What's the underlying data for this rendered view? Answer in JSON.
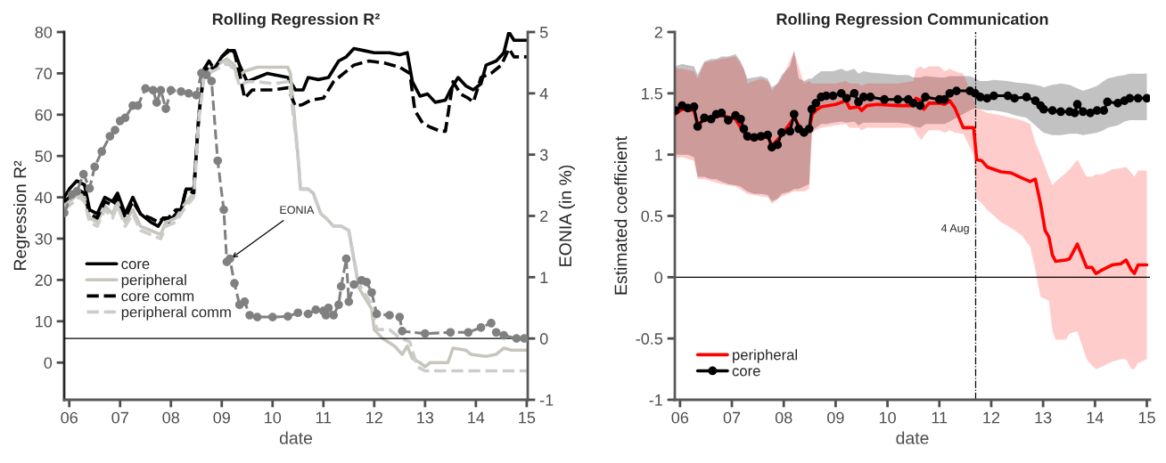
{
  "chart_data": [
    {
      "type": "line",
      "title": "Rolling Regression R²",
      "xlabel": "date",
      "ylabel": "Regression R²",
      "y2label": "EONIA (in %)",
      "xlim": [
        2005.9,
        2015.02
      ],
      "xticks": [
        {
          "value": 2006,
          "label": "06"
        },
        {
          "value": 2007,
          "label": "07"
        },
        {
          "value": 2008,
          "label": "08"
        },
        {
          "value": 2009,
          "label": "09"
        },
        {
          "value": 2010,
          "label": "10"
        },
        {
          "value": 2011,
          "label": "11"
        },
        {
          "value": 2012,
          "label": "12"
        },
        {
          "value": 2013,
          "label": "13"
        },
        {
          "value": 2014,
          "label": "14"
        },
        {
          "value": 2015,
          "label": "15"
        }
      ],
      "ylim": [
        -9,
        80
      ],
      "yticks": [
        0,
        10,
        20,
        30,
        40,
        50,
        60,
        70,
        80
      ],
      "y2lim": [
        -1,
        5
      ],
      "y2ticks": [
        -1,
        0,
        1,
        2,
        3,
        4,
        5
      ],
      "legend": "bottom left",
      "grid": false,
      "ref_lines": [
        {
          "axis": "y2",
          "value": 0,
          "color": "#000000",
          "line_style": "solid"
        }
      ],
      "annotations": [
        {
          "text": "EONIA",
          "x": 2009.16,
          "y": 25
        }
      ],
      "series": [
        {
          "name": "core",
          "color": "#000000",
          "line_style": "solid",
          "x": [
            2005.9,
            2006.0,
            2006.15,
            2006.3,
            2006.4,
            2006.55,
            2006.7,
            2006.85,
            2006.95,
            2007.1,
            2007.25,
            2007.4,
            2007.6,
            2007.75,
            2007.85,
            2007.95,
            2008.1,
            2008.2,
            2008.3,
            2008.45,
            2008.55,
            2008.65,
            2008.75,
            2008.85,
            2009.0,
            2009.15,
            2009.25,
            2009.35,
            2009.5,
            2009.7,
            2009.9,
            2010.1,
            2010.3,
            2010.45,
            2010.6,
            2010.7,
            2010.9,
            2011.1,
            2011.2,
            2011.3,
            2011.45,
            2011.6,
            2011.8,
            2012.0,
            2012.3,
            2012.5,
            2012.65,
            2012.75,
            2012.9,
            2013.05,
            2013.2,
            2013.4,
            2013.5,
            2013.65,
            2013.8,
            2013.95,
            2014.1,
            2014.2,
            2014.4,
            2014.55,
            2014.65,
            2014.75,
            2015.0
          ],
          "values": [
            40,
            42,
            44,
            43,
            37,
            36,
            40,
            39,
            41,
            36,
            40,
            36,
            34,
            33,
            35,
            34,
            36,
            37,
            42,
            42,
            60,
            71,
            73,
            71,
            74,
            75.5,
            75.5,
            72,
            68,
            69,
            70,
            69.5,
            69,
            66,
            66,
            69,
            68.5,
            69,
            71,
            73,
            74,
            76,
            75.5,
            75,
            75,
            74.5,
            75,
            68,
            64.5,
            65,
            63,
            63.5,
            66,
            69,
            67,
            66,
            67.5,
            72,
            73,
            75,
            80,
            78,
            78
          ]
        },
        {
          "name": "peripheral",
          "color": "#c8c5bd",
          "line_style": "solid",
          "x": [
            2005.9,
            2006.0,
            2006.2,
            2006.3,
            2006.4,
            2006.55,
            2006.7,
            2006.85,
            2006.95,
            2007.1,
            2007.25,
            2007.4,
            2007.6,
            2007.8,
            2007.9,
            2008.1,
            2008.25,
            2008.45,
            2008.55,
            2008.65,
            2008.75,
            2008.9,
            2009.1,
            2009.25,
            2009.3,
            2009.45,
            2009.7,
            2009.9,
            2010.1,
            2010.3,
            2010.35,
            2010.5,
            2010.55,
            2010.7,
            2010.8,
            2010.95,
            2011.05,
            2011.2,
            2011.35,
            2011.5,
            2011.6,
            2011.7,
            2011.75,
            2011.85,
            2011.95,
            2012.0,
            2012.15,
            2012.4,
            2012.55,
            2012.65,
            2012.75,
            2012.9,
            2013.0,
            2013.1,
            2013.3,
            2013.45,
            2013.55,
            2013.8,
            2013.9,
            2014.2,
            2014.4,
            2014.55,
            2014.7,
            2015.0
          ],
          "values": [
            38,
            39,
            41,
            40,
            35,
            34,
            38,
            36,
            39,
            34,
            37,
            33,
            32,
            31,
            34,
            35,
            38,
            41,
            60,
            70,
            71,
            72,
            73.5,
            72,
            69,
            70.5,
            71.5,
            71.5,
            71.5,
            71.5,
            70,
            50,
            42,
            42,
            41,
            36,
            35,
            33,
            33,
            32,
            25,
            18,
            17,
            15,
            13,
            8,
            6,
            4,
            2,
            4,
            1,
            0,
            -1,
            0,
            0,
            0,
            3.5,
            3,
            2,
            1.5,
            2,
            3.5,
            3,
            3
          ]
        },
        {
          "name": "core comm",
          "color": "#000000",
          "line_style": "dashed",
          "x": [
            2005.9,
            2006.0,
            2006.15,
            2006.3,
            2006.4,
            2006.55,
            2006.7,
            2006.85,
            2006.95,
            2007.1,
            2007.25,
            2007.4,
            2007.6,
            2007.75,
            2007.85,
            2007.95,
            2008.1,
            2008.2,
            2008.3,
            2008.45,
            2008.55,
            2008.65,
            2008.75,
            2008.85,
            2009.0,
            2009.15,
            2009.25,
            2009.35,
            2009.45,
            2009.6,
            2010.0,
            2010.3,
            2010.45,
            2010.6,
            2010.75,
            2011.0,
            2011.2,
            2011.4,
            2011.6,
            2011.9,
            2012.2,
            2012.5,
            2012.7,
            2012.8,
            2012.95,
            2013.1,
            2013.3,
            2013.4,
            2013.55,
            2013.7,
            2013.85,
            2013.95,
            2014.1,
            2014.3,
            2014.5,
            2014.65,
            2014.75,
            2015.0
          ],
          "values": [
            39,
            40,
            42,
            41,
            36,
            35,
            39,
            38,
            40,
            35,
            39,
            36,
            35,
            34,
            35,
            35,
            37,
            37,
            42,
            41,
            60,
            70,
            72,
            71,
            74,
            76,
            75,
            70,
            64,
            66,
            66,
            66.5,
            62,
            62.5,
            63.5,
            64,
            68,
            70,
            72,
            73,
            72.5,
            71.5,
            70,
            61,
            58,
            57,
            56,
            56,
            68,
            65,
            64,
            63,
            69,
            70,
            72,
            76,
            74,
            74
          ]
        },
        {
          "name": "peripheral comm",
          "color": "#cccccc",
          "line_style": "dashed",
          "x": [
            2005.9,
            2006.0,
            2006.2,
            2006.3,
            2006.4,
            2006.55,
            2006.7,
            2006.85,
            2006.95,
            2007.1,
            2007.25,
            2007.4,
            2007.6,
            2007.8,
            2007.9,
            2008.1,
            2008.25,
            2008.45,
            2008.55,
            2008.65,
            2008.75,
            2008.9,
            2009.1,
            2009.25,
            2009.35,
            2009.5,
            2009.7,
            2010.0,
            2010.3,
            2010.35,
            2010.5,
            2010.55,
            2010.7,
            2010.8,
            2010.95,
            2011.05,
            2011.2,
            2011.35,
            2011.5,
            2011.6,
            2011.7,
            2011.75,
            2011.85,
            2011.95,
            2012.05,
            2012.3,
            2012.5,
            2012.7,
            2012.75,
            2012.85,
            2013.0,
            2013.5,
            2015.0
          ],
          "values": [
            37,
            38,
            40,
            39,
            34,
            33,
            37,
            35,
            38,
            33,
            36,
            32,
            31,
            30,
            33,
            34,
            37,
            40,
            59,
            69,
            70,
            71,
            72.5,
            71,
            67,
            68,
            68,
            67.5,
            68,
            66,
            50,
            42,
            42,
            41,
            36,
            35,
            33,
            33,
            32,
            25,
            19,
            18,
            16,
            14,
            8,
            8,
            6,
            5,
            3,
            -1,
            -2,
            -2,
            -2
          ]
        },
        {
          "color": "#808080",
          "line_style": "dashed",
          "marker": "circle",
          "axis": "y2",
          "x": [
            2005.9,
            2006.05,
            2006.15,
            2006.28,
            2006.4,
            2006.5,
            2006.64,
            2006.8,
            2006.9,
            2007.0,
            2007.1,
            2007.25,
            2007.35,
            2007.5,
            2007.65,
            2007.72,
            2007.8,
            2007.9,
            2008.0,
            2008.2,
            2008.35,
            2008.5,
            2008.6,
            2008.7,
            2008.8,
            2008.92,
            2009.04,
            2009.1,
            2009.16,
            2009.25,
            2009.35,
            2009.45,
            2009.55,
            2009.7,
            2010.0,
            2010.3,
            2010.5,
            2010.7,
            2010.85,
            2011.0,
            2011.05,
            2011.1,
            2011.2,
            2011.3,
            2011.35,
            2011.45,
            2011.5,
            2011.6,
            2011.75,
            2011.85,
            2011.95,
            2012.05,
            2012.3,
            2012.5,
            2012.55,
            2013.0,
            2013.5,
            2013.85,
            2014.1,
            2014.3,
            2014.4,
            2014.55,
            2014.8,
            2014.95
          ],
          "values": [
            2.05,
            2.35,
            2.4,
            2.68,
            2.45,
            2.8,
            3.05,
            3.3,
            3.4,
            3.55,
            3.6,
            3.8,
            3.8,
            4.08,
            4.05,
            3.85,
            4.05,
            3.75,
            4.05,
            4.03,
            4.0,
            3.97,
            4.33,
            4.3,
            4.2,
            2.9,
            2.1,
            1.25,
            1.3,
            0.9,
            0.55,
            0.6,
            0.38,
            0.35,
            0.35,
            0.36,
            0.42,
            0.4,
            0.47,
            0.45,
            0.38,
            0.5,
            0.38,
            0.55,
            0.85,
            1.3,
            0.6,
            0.88,
            0.95,
            0.92,
            0.75,
            0.4,
            0.38,
            0.35,
            0.12,
            0.08,
            0.1,
            0.1,
            0.18,
            0.25,
            0.1,
            0.05,
            0.0,
            0.0
          ]
        }
      ]
    },
    {
      "type": "line",
      "title": "Rolling Regression Communication",
      "xlabel": "date",
      "ylabel": "Estimated coefficient",
      "xlim": [
        2005.9,
        2015.06
      ],
      "xticks": [
        {
          "value": 2006,
          "label": "06"
        },
        {
          "value": 2007,
          "label": "07"
        },
        {
          "value": 2008,
          "label": "08"
        },
        {
          "value": 2009,
          "label": "09"
        },
        {
          "value": 2010,
          "label": "10"
        },
        {
          "value": 2011,
          "label": "11"
        },
        {
          "value": 2012,
          "label": "12"
        },
        {
          "value": 2013,
          "label": "13"
        },
        {
          "value": 2014,
          "label": "14"
        },
        {
          "value": 2015,
          "label": "15"
        }
      ],
      "ylim": [
        -1,
        2
      ],
      "yticks": [
        -1,
        -0.5,
        0,
        0.5,
        1,
        1.5,
        2
      ],
      "legend": "bottom left",
      "grid": false,
      "ref_lines": [
        {
          "axis": "y",
          "value": 0,
          "color": "#000000",
          "line_style": "solid"
        },
        {
          "axis": "x",
          "value": 2011.7,
          "label": "4 Aug",
          "color": "#000000",
          "line_style": "dashdot"
        }
      ],
      "series": [
        {
          "name": "peripheral",
          "color": "#ff0000",
          "line_style": "solid",
          "marker": "none",
          "x": [
            2005.91,
            2006.04,
            2006.27,
            2006.34,
            2006.47,
            2006.8,
            2007.07,
            2007.23,
            2007.3,
            2007.56,
            2007.7,
            2007.77,
            2007.96,
            2008.2,
            2008.39,
            2008.49,
            2008.55,
            2008.62,
            2008.72,
            2009.0,
            2009.2,
            2009.27,
            2009.44,
            2009.5,
            2009.6,
            2009.8,
            2010.2,
            2010.5,
            2010.55,
            2010.65,
            2010.7,
            2010.8,
            2011.0,
            2011.1,
            2011.2,
            2011.3,
            2011.46,
            2011.66,
            2011.72,
            2011.82,
            2011.92,
            2012.19,
            2012.39,
            2012.59,
            2012.75,
            2012.85,
            2012.95,
            2013.04,
            2013.11,
            2013.18,
            2013.24,
            2013.44,
            2013.51,
            2013.66,
            2013.84,
            2013.94,
            2014.02,
            2014.14,
            2014.33,
            2014.5,
            2014.6,
            2014.7,
            2014.76,
            2014.83,
            2015.0
          ],
          "values": [
            1.33,
            1.37,
            1.36,
            1.25,
            1.28,
            1.32,
            1.29,
            1.18,
            1.13,
            1.13,
            1.15,
            1.07,
            1.16,
            1.3,
            1.17,
            1.2,
            1.33,
            1.36,
            1.39,
            1.41,
            1.44,
            1.38,
            1.39,
            1.36,
            1.4,
            1.41,
            1.4,
            1.4,
            1.46,
            1.44,
            1.37,
            1.42,
            1.42,
            1.41,
            1.44,
            1.38,
            1.22,
            1.22,
            0.96,
            0.95,
            0.9,
            0.86,
            0.85,
            0.81,
            0.78,
            0.8,
            0.6,
            0.38,
            0.33,
            0.18,
            0.13,
            0.14,
            0.15,
            0.27,
            0.08,
            0.08,
            0.03,
            0.06,
            0.1,
            0.11,
            0.14,
            0.06,
            0.03,
            0.1,
            0.1
          ],
          "lower": [
            0.97,
            0.98,
            0.95,
            0.8,
            0.8,
            0.76,
            0.74,
            0.7,
            0.68,
            0.66,
            0.65,
            0.6,
            0.66,
            0.7,
            0.7,
            0.72,
            1.18,
            1.2,
            1.22,
            1.24,
            1.25,
            1.22,
            1.22,
            1.2,
            1.22,
            1.22,
            1.22,
            1.22,
            1.18,
            1.12,
            1.15,
            1.2,
            1.2,
            1.18,
            1.2,
            1.18,
            1.17,
            1.0,
            0.64,
            0.6,
            0.55,
            0.45,
            0.4,
            0.34,
            0.25,
            0.06,
            -0.16,
            -0.18,
            -0.19,
            -0.44,
            -0.51,
            -0.51,
            -0.46,
            -0.44,
            -0.67,
            -0.72,
            -0.75,
            -0.73,
            -0.69,
            -0.67,
            -0.67,
            -0.75,
            -0.75,
            -0.7,
            -0.67
          ],
          "upper": [
            1.7,
            1.7,
            1.68,
            1.62,
            1.75,
            1.78,
            1.8,
            1.7,
            1.58,
            1.62,
            1.6,
            1.52,
            1.62,
            1.84,
            1.58,
            1.6,
            1.58,
            1.58,
            1.58,
            1.58,
            1.6,
            1.58,
            1.58,
            1.56,
            1.58,
            1.58,
            1.58,
            1.6,
            1.7,
            1.72,
            1.7,
            1.72,
            1.72,
            1.68,
            1.7,
            1.68,
            1.66,
            1.45,
            1.38,
            1.36,
            1.34,
            1.32,
            1.3,
            1.28,
            1.25,
            1.1,
            1.0,
            0.9,
            0.82,
            0.75,
            0.78,
            0.85,
            0.88,
            0.96,
            0.82,
            0.82,
            0.84,
            0.84,
            0.88,
            0.89,
            0.9,
            0.85,
            0.82,
            0.87,
            0.87
          ]
        },
        {
          "name": "core",
          "color": "#000000",
          "line_style": "solid",
          "marker": "circle",
          "x": [
            2005.91,
            2006.04,
            2006.15,
            2006.27,
            2006.34,
            2006.47,
            2006.6,
            2006.7,
            2006.8,
            2006.93,
            2007.07,
            2007.17,
            2007.23,
            2007.3,
            2007.43,
            2007.56,
            2007.69,
            2007.77,
            2007.88,
            2007.96,
            2008.12,
            2008.2,
            2008.29,
            2008.39,
            2008.49,
            2008.54,
            2008.62,
            2008.72,
            2008.82,
            2008.95,
            2009.11,
            2009.21,
            2009.36,
            2009.44,
            2009.54,
            2009.67,
            2009.94,
            2010.2,
            2010.4,
            2010.5,
            2010.63,
            2010.73,
            2011.0,
            2011.1,
            2011.2,
            2011.33,
            2011.59,
            2011.69,
            2011.79,
            2011.92,
            2012.05,
            2012.32,
            2012.45,
            2012.68,
            2012.85,
            2012.95,
            2013.01,
            2013.18,
            2013.34,
            2013.51,
            2013.61,
            2013.66,
            2013.77,
            2013.91,
            2014.04,
            2014.17,
            2014.24,
            2014.44,
            2014.57,
            2014.67,
            2014.83,
            2015.0
          ],
          "values": [
            1.36,
            1.4,
            1.38,
            1.39,
            1.23,
            1.3,
            1.29,
            1.33,
            1.34,
            1.28,
            1.32,
            1.29,
            1.21,
            1.15,
            1.14,
            1.15,
            1.16,
            1.06,
            1.08,
            1.18,
            1.19,
            1.33,
            1.21,
            1.18,
            1.21,
            1.37,
            1.42,
            1.47,
            1.48,
            1.48,
            1.5,
            1.46,
            1.5,
            1.43,
            1.47,
            1.47,
            1.45,
            1.45,
            1.45,
            1.42,
            1.4,
            1.47,
            1.45,
            1.45,
            1.5,
            1.52,
            1.52,
            1.5,
            1.47,
            1.46,
            1.48,
            1.48,
            1.46,
            1.47,
            1.44,
            1.4,
            1.37,
            1.36,
            1.35,
            1.35,
            1.34,
            1.41,
            1.35,
            1.34,
            1.36,
            1.36,
            1.43,
            1.42,
            1.44,
            1.46,
            1.46,
            1.46
          ],
          "lower": [
            1.0,
            1.0,
            1.0,
            0.98,
            0.82,
            0.82,
            0.8,
            0.8,
            0.78,
            0.76,
            0.75,
            0.74,
            0.72,
            0.7,
            0.68,
            0.68,
            0.67,
            0.62,
            0.64,
            0.68,
            0.7,
            0.72,
            0.72,
            0.74,
            0.76,
            1.2,
            1.22,
            1.25,
            1.25,
            1.26,
            1.27,
            1.26,
            1.27,
            1.24,
            1.26,
            1.26,
            1.26,
            1.26,
            1.25,
            1.23,
            1.22,
            1.25,
            1.25,
            1.25,
            1.27,
            1.3,
            1.36,
            1.38,
            1.37,
            1.36,
            1.36,
            1.34,
            1.32,
            1.3,
            1.24,
            1.2,
            1.18,
            1.16,
            1.16,
            1.17,
            1.17,
            1.17,
            1.16,
            1.17,
            1.18,
            1.2,
            1.22,
            1.24,
            1.27,
            1.28,
            1.28,
            1.28
          ],
          "upper": [
            1.72,
            1.74,
            1.73,
            1.72,
            1.65,
            1.76,
            1.78,
            1.78,
            1.8,
            1.8,
            1.82,
            1.76,
            1.7,
            1.62,
            1.63,
            1.64,
            1.62,
            1.55,
            1.58,
            1.65,
            1.72,
            1.85,
            1.62,
            1.6,
            1.62,
            1.62,
            1.65,
            1.68,
            1.68,
            1.68,
            1.7,
            1.68,
            1.7,
            1.66,
            1.68,
            1.67,
            1.66,
            1.65,
            1.65,
            1.63,
            1.63,
            1.64,
            1.63,
            1.63,
            1.64,
            1.64,
            1.64,
            1.62,
            1.6,
            1.6,
            1.61,
            1.6,
            1.59,
            1.58,
            1.57,
            1.56,
            1.55,
            1.57,
            1.58,
            1.57,
            1.55,
            1.54,
            1.52,
            1.54,
            1.56,
            1.6,
            1.62,
            1.64,
            1.65,
            1.66,
            1.66,
            1.66
          ]
        }
      ]
    }
  ]
}
